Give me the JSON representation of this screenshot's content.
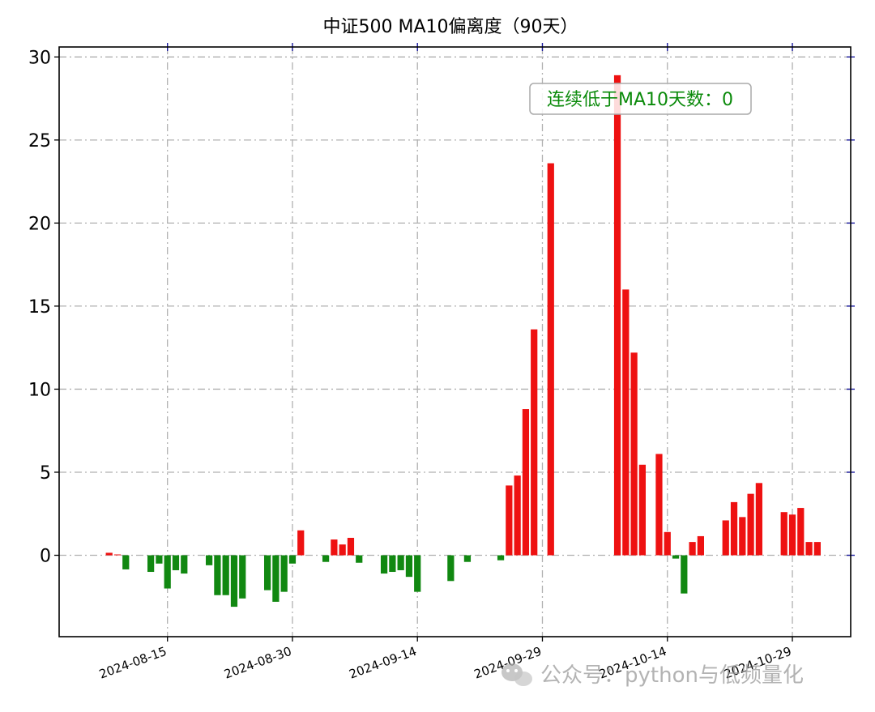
{
  "chart_data": {
    "type": "bar",
    "title": "中证500 MA10偏离度（90天）",
    "xlabel": "",
    "ylabel": "",
    "ylim": [
      -4.9,
      30.6
    ],
    "yticks": [
      0,
      5,
      10,
      15,
      20,
      25,
      30
    ],
    "xlim": [
      "2024-08-02",
      "2024-11-05"
    ],
    "xticks": [
      "2024-08-15",
      "2024-08-30",
      "2024-09-14",
      "2024-09-29",
      "2024-10-14",
      "2024-10-29"
    ],
    "grid": true,
    "positive_color": "#ee1111",
    "negative_color": "#118811",
    "annotation": {
      "text": "连续低于MA10天数：0",
      "color": "#0a8a0a",
      "position": "top-right"
    },
    "x": [
      "2024-08-08",
      "2024-08-09",
      "2024-08-10",
      "2024-08-13",
      "2024-08-14",
      "2024-08-15",
      "2024-08-16",
      "2024-08-17",
      "2024-08-20",
      "2024-08-21",
      "2024-08-22",
      "2024-08-23",
      "2024-08-24",
      "2024-08-27",
      "2024-08-28",
      "2024-08-29",
      "2024-08-30",
      "2024-08-31",
      "2024-09-03",
      "2024-09-04",
      "2024-09-05",
      "2024-09-06",
      "2024-09-07",
      "2024-09-10",
      "2024-09-11",
      "2024-09-12",
      "2024-09-13",
      "2024-09-14",
      "2024-09-18",
      "2024-09-20",
      "2024-09-24",
      "2024-09-25",
      "2024-09-26",
      "2024-09-27",
      "2024-09-28",
      "2024-09-30",
      "2024-10-08",
      "2024-10-09",
      "2024-10-10",
      "2024-10-11",
      "2024-10-13",
      "2024-10-14",
      "2024-10-15",
      "2024-10-16",
      "2024-10-17",
      "2024-10-18",
      "2024-10-21",
      "2024-10-22",
      "2024-10-23",
      "2024-10-24",
      "2024-10-25",
      "2024-10-28",
      "2024-10-29",
      "2024-10-30",
      "2024-10-31",
      "2024-11-01"
    ],
    "values": [
      0.15,
      0.05,
      -0.85,
      -1.0,
      -0.5,
      -2.0,
      -0.9,
      -1.1,
      -0.6,
      -2.4,
      -2.4,
      -3.1,
      -2.6,
      -2.1,
      -2.8,
      -2.2,
      -0.5,
      1.5,
      -0.4,
      0.95,
      0.65,
      1.05,
      -0.45,
      -1.1,
      -1.0,
      -0.9,
      -1.3,
      -2.2,
      -1.55,
      -0.4,
      -0.3,
      4.2,
      4.8,
      8.8,
      13.6,
      23.6,
      28.9,
      16.0,
      12.2,
      5.45,
      6.1,
      1.4,
      -0.2,
      -2.3,
      0.8,
      1.15,
      2.1,
      3.2,
      2.3,
      3.7,
      4.35,
      2.6,
      2.45,
      2.85,
      0.8,
      0.8
    ]
  },
  "watermark": {
    "icon": "wechat-icon",
    "text": "公众号：python与低频量化"
  }
}
